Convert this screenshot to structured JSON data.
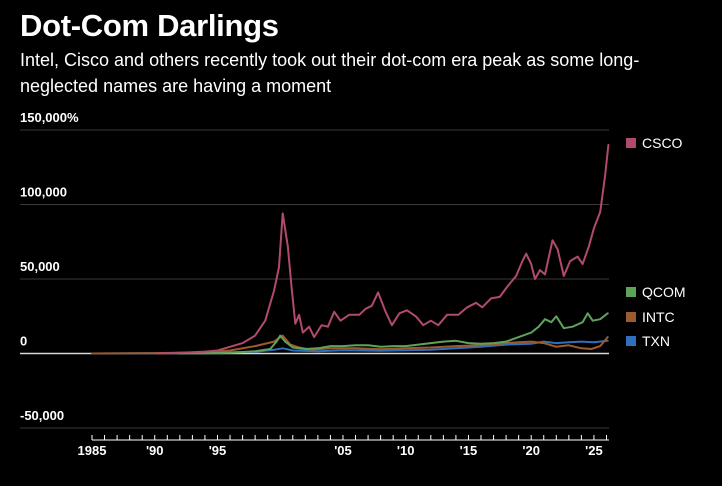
{
  "chart_data": {
    "type": "line",
    "title": "Dot-Com Darlings",
    "subtitle": "Intel, Cisco and others recently took out their dot-com era peak as some long-neglected names are having a moment",
    "xlabel": "",
    "ylabel": "",
    "xlim": [
      1985,
      2026.2
    ],
    "ylim": [
      -50000,
      150000
    ],
    "grid": true,
    "legend_position": "right",
    "y_ticks": [
      {
        "value": 150000,
        "label": "150,000%"
      },
      {
        "value": 100000,
        "label": "100,000"
      },
      {
        "value": 50000,
        "label": "50,000"
      },
      {
        "value": 0,
        "label": "0"
      },
      {
        "value": -50000,
        "label": "-50,000"
      }
    ],
    "x_ticks": [
      {
        "value": 1985,
        "label": "1985"
      },
      {
        "value": 1990,
        "label": "'90"
      },
      {
        "value": 1995,
        "label": "'95"
      },
      {
        "value": 2005,
        "label": "'05"
      },
      {
        "value": 2010,
        "label": "'10"
      },
      {
        "value": 2015,
        "label": "'15"
      },
      {
        "value": 2020,
        "label": "'20"
      },
      {
        "value": 2025,
        "label": "'25"
      }
    ],
    "series": [
      {
        "name": "CSCO",
        "color": "#b24a6c",
        "points": [
          [
            1990.1,
            0
          ],
          [
            1991,
            200
          ],
          [
            1992,
            500
          ],
          [
            1993,
            900
          ],
          [
            1994,
            1300
          ],
          [
            1995,
            2000
          ],
          [
            1996,
            4500
          ],
          [
            1997,
            7000
          ],
          [
            1998,
            12000
          ],
          [
            1998.8,
            22000
          ],
          [
            1999.5,
            42000
          ],
          [
            1999.9,
            58000
          ],
          [
            2000.2,
            94000
          ],
          [
            2000.6,
            72000
          ],
          [
            2000.9,
            45000
          ],
          [
            2001.2,
            20000
          ],
          [
            2001.5,
            26000
          ],
          [
            2001.8,
            14000
          ],
          [
            2002.3,
            18000
          ],
          [
            2002.7,
            11000
          ],
          [
            2003.3,
            19000
          ],
          [
            2003.8,
            18000
          ],
          [
            2004.3,
            28000
          ],
          [
            2004.8,
            22000
          ],
          [
            2005.5,
            26000
          ],
          [
            2006.3,
            26000
          ],
          [
            2006.8,
            30000
          ],
          [
            2007.3,
            32000
          ],
          [
            2007.8,
            41000
          ],
          [
            2008.4,
            28000
          ],
          [
            2008.9,
            19000
          ],
          [
            2009.5,
            27000
          ],
          [
            2010.1,
            29000
          ],
          [
            2010.8,
            25000
          ],
          [
            2011.4,
            19000
          ],
          [
            2012,
            22000
          ],
          [
            2012.6,
            19000
          ],
          [
            2013.3,
            26000
          ],
          [
            2014.2,
            26000
          ],
          [
            2014.9,
            31000
          ],
          [
            2015.6,
            34000
          ],
          [
            2016.1,
            31000
          ],
          [
            2016.8,
            37000
          ],
          [
            2017.5,
            38000
          ],
          [
            2018.1,
            45000
          ],
          [
            2018.8,
            52000
          ],
          [
            2019.3,
            62000
          ],
          [
            2019.6,
            67000
          ],
          [
            2020,
            60000
          ],
          [
            2020.3,
            50000
          ],
          [
            2020.7,
            56000
          ],
          [
            2021.1,
            53000
          ],
          [
            2021.7,
            76000
          ],
          [
            2022.1,
            70000
          ],
          [
            2022.6,
            52000
          ],
          [
            2023.1,
            62000
          ],
          [
            2023.7,
            65000
          ],
          [
            2024.1,
            60000
          ],
          [
            2024.6,
            72000
          ],
          [
            2025,
            84000
          ],
          [
            2025.5,
            95000
          ],
          [
            2025.9,
            120000
          ],
          [
            2026.15,
            140000
          ]
        ]
      },
      {
        "name": "QCOM",
        "color": "#5ea35a",
        "points": [
          [
            1991.9,
            0
          ],
          [
            1994,
            200
          ],
          [
            1996,
            500
          ],
          [
            1998,
            1500
          ],
          [
            1999.2,
            3000
          ],
          [
            1999.7,
            8000
          ],
          [
            2000.0,
            12000
          ],
          [
            2000.4,
            8000
          ],
          [
            2001,
            4000
          ],
          [
            2002,
            3000
          ],
          [
            2003,
            3500
          ],
          [
            2004,
            5000
          ],
          [
            2005,
            5000
          ],
          [
            2006,
            5500
          ],
          [
            2007,
            5500
          ],
          [
            2008,
            4500
          ],
          [
            2009,
            5000
          ],
          [
            2010,
            5000
          ],
          [
            2011,
            6000
          ],
          [
            2012,
            7000
          ],
          [
            2013,
            8000
          ],
          [
            2014,
            8500
          ],
          [
            2015,
            7000
          ],
          [
            2016,
            6500
          ],
          [
            2017,
            7000
          ],
          [
            2018,
            8000
          ],
          [
            2019,
            11000
          ],
          [
            2020,
            14000
          ],
          [
            2020.6,
            18000
          ],
          [
            2021.1,
            23000
          ],
          [
            2021.6,
            21000
          ],
          [
            2022,
            25000
          ],
          [
            2022.6,
            17000
          ],
          [
            2023.3,
            18000
          ],
          [
            2024.1,
            21000
          ],
          [
            2024.5,
            27000
          ],
          [
            2024.9,
            22000
          ],
          [
            2025.5,
            23000
          ],
          [
            2026.1,
            27000
          ]
        ]
      },
      {
        "name": "INTC",
        "color": "#9c5b2c",
        "points": [
          [
            1985,
            0
          ],
          [
            1990,
            300
          ],
          [
            1994,
            800
          ],
          [
            1996,
            2000
          ],
          [
            1998,
            5000
          ],
          [
            1999.5,
            8000
          ],
          [
            2000.2,
            12000
          ],
          [
            2000.8,
            6000
          ],
          [
            2001.5,
            4000
          ],
          [
            2002.5,
            2500
          ],
          [
            2004,
            3500
          ],
          [
            2006,
            3500
          ],
          [
            2008,
            2800
          ],
          [
            2010,
            3500
          ],
          [
            2012,
            4000
          ],
          [
            2014,
            5000
          ],
          [
            2016,
            5500
          ],
          [
            2018,
            7000
          ],
          [
            2019,
            7500
          ],
          [
            2020,
            8000
          ],
          [
            2021,
            7000
          ],
          [
            2022,
            4500
          ],
          [
            2023,
            5500
          ],
          [
            2024,
            3500
          ],
          [
            2024.8,
            3000
          ],
          [
            2025.5,
            5000
          ],
          [
            2026.1,
            11000
          ]
        ]
      },
      {
        "name": "TXN",
        "color": "#2f6fbd",
        "points": [
          [
            1985,
            0
          ],
          [
            1990,
            200
          ],
          [
            1995,
            600
          ],
          [
            1998,
            1200
          ],
          [
            1999.5,
            2500
          ],
          [
            2000.2,
            3500
          ],
          [
            2001,
            2000
          ],
          [
            2003,
            1500
          ],
          [
            2005,
            2200
          ],
          [
            2008,
            1800
          ],
          [
            2010,
            2200
          ],
          [
            2012,
            2500
          ],
          [
            2014,
            3500
          ],
          [
            2016,
            4500
          ],
          [
            2018,
            6000
          ],
          [
            2020,
            6500
          ],
          [
            2021,
            8000
          ],
          [
            2022,
            7000
          ],
          [
            2023,
            7500
          ],
          [
            2024,
            8000
          ],
          [
            2025,
            7500
          ],
          [
            2026.1,
            8500
          ]
        ]
      }
    ]
  }
}
